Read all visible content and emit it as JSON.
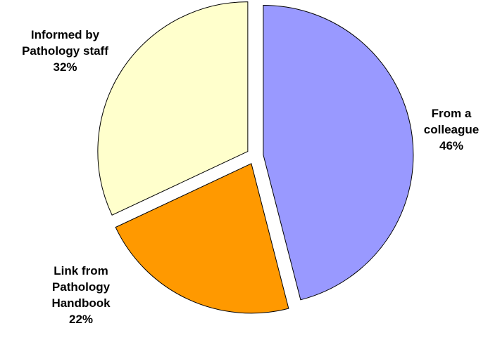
{
  "chart_data": {
    "type": "pie",
    "start_angle_deg": 0,
    "direction": "clockwise",
    "slices": [
      {
        "label_lines": [
          "From a",
          "colleague"
        ],
        "percent_label": "46%",
        "value": 46,
        "color": "#9999ff",
        "exploded": true
      },
      {
        "label_lines": [
          "Link from",
          "Pathology",
          "Handbook"
        ],
        "percent_label": "22%",
        "value": 22,
        "color": "#ff9900",
        "exploded": true
      },
      {
        "label_lines": [
          "Informed by",
          "Pathology staff"
        ],
        "percent_label": "32%",
        "value": 32,
        "color": "#ffffcc",
        "exploded": true
      }
    ],
    "legend": "none"
  }
}
